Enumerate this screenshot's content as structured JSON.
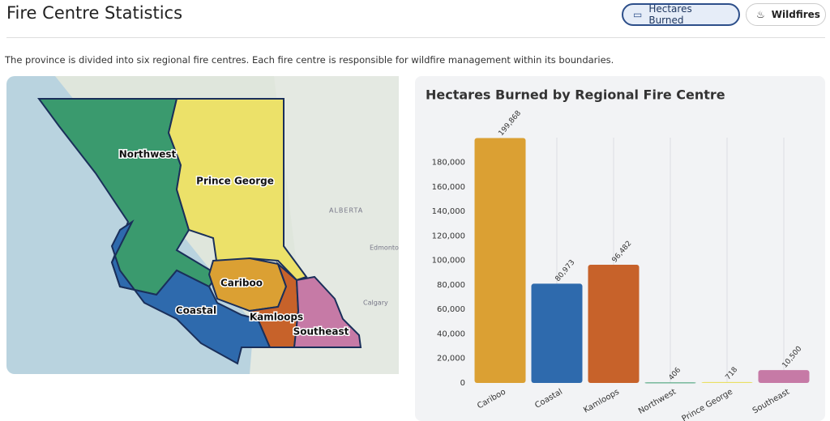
{
  "header": {
    "title": "Fire Centre Statistics"
  },
  "buttons": [
    "Hectares Burned",
    "Wildfires"
  ],
  "description": "The province is divided into six regional fire centres. Each fire centre is responsible for wildfire management within its boundaries.",
  "map": {
    "region_labels": [
      "Northwest",
      "Prince George",
      "Cariboo",
      "Coastal",
      "Kamloops",
      "Southeast"
    ],
    "place_labels": [
      "ALBERTA",
      "Edmonton",
      "Calgary"
    ]
  },
  "chart_data": {
    "type": "bar",
    "title": "Hectares Burned by Regional Fire Centre",
    "categories": [
      "Cariboo",
      "Coastal",
      "Kamloops",
      "Northwest",
      "Prince George",
      "Southeast"
    ],
    "values": [
      199868,
      80973,
      96482,
      406,
      718,
      10500
    ],
    "value_labels": [
      "199,868",
      "80,973",
      "96,482",
      "406",
      "718",
      "10,500"
    ],
    "colors": [
      "#dba033",
      "#2e6aad",
      "#c7622a",
      "#3a9a6e",
      "#e9e063",
      "#c67aa6"
    ],
    "ylim": [
      0,
      220000
    ],
    "yticks": [
      0,
      {
        "value": 20000,
        "label": "20,000"
      },
      {
        "value": 40000,
        "label": "40,000"
      },
      {
        "value": 60000,
        "label": "60,000"
      },
      {
        "value": 80000,
        "label": "80,000"
      },
      {
        "value": 100000,
        "label": "100,000"
      },
      {
        "value": 120000,
        "label": "120,000"
      },
      {
        "value": 140000,
        "label": "140,000"
      },
      {
        "value": 160000,
        "label": "160,000"
      },
      {
        "value": 180000,
        "label": "180,000"
      }
    ],
    "grid": false
  }
}
